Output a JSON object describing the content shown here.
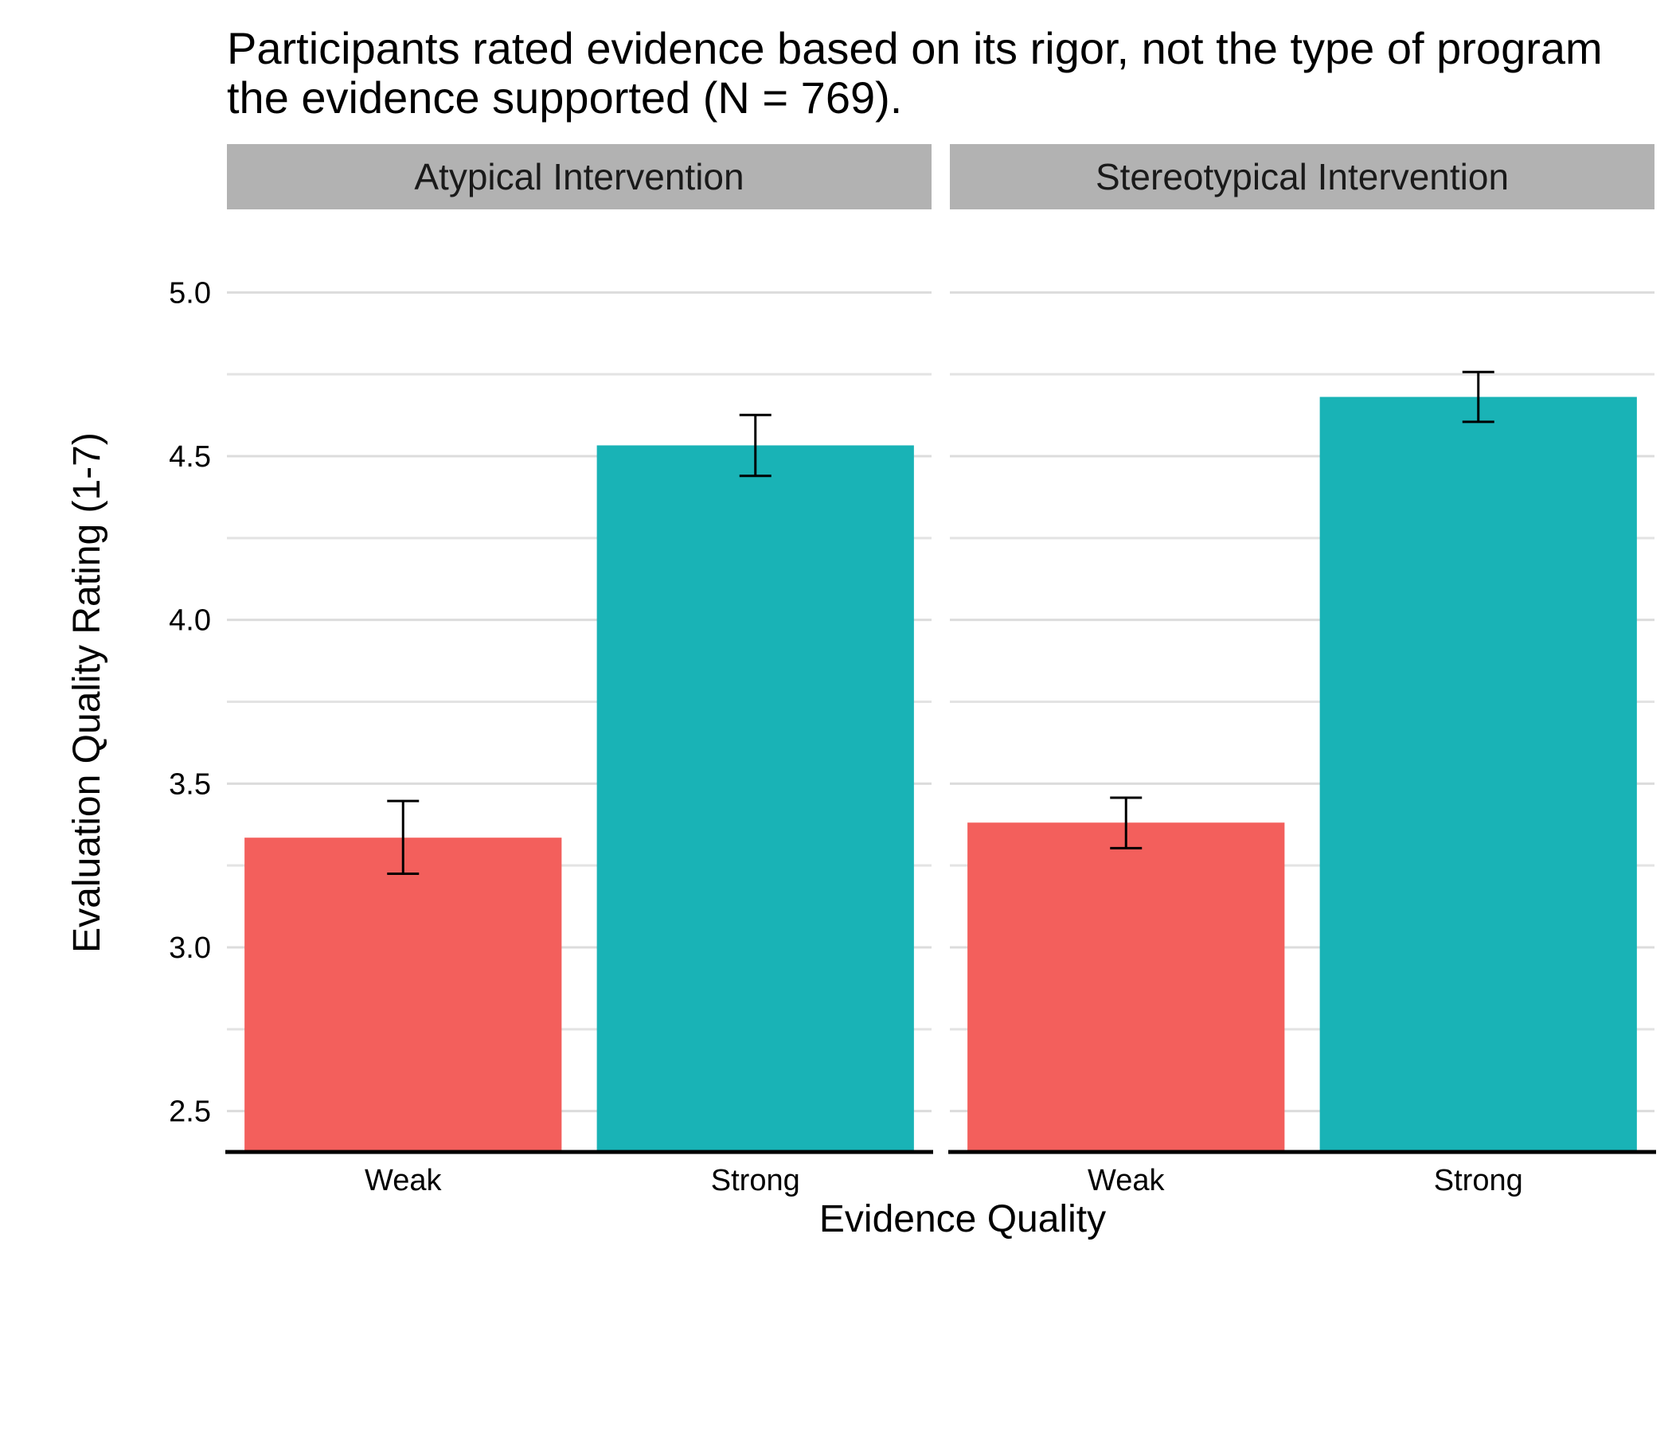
{
  "chart_data": {
    "type": "bar",
    "title": "Participants rated evidence based on its rigor, not the type of program\nthe evidence supported (N = 769).",
    "xlabel": "Evidence Quality",
    "ylabel": "Evaluation Quality Rating (1-7)",
    "ylim": [
      2.38,
      5.12
    ],
    "yticks": [
      "2.5",
      "3.0",
      "3.5",
      "4.0",
      "4.5",
      "5.0"
    ],
    "grid": "horizontal major and minor",
    "legend": "none",
    "categories": [
      "Weak",
      "Strong"
    ],
    "colors": {
      "Weak": "#F35F5C",
      "Strong": "#19B3B6"
    },
    "facets": [
      {
        "name": "Atypical Intervention",
        "bars": [
          {
            "category": "Weak",
            "value": 3.335,
            "error_low": 3.225,
            "error_high": 3.447
          },
          {
            "category": "Strong",
            "value": 4.533,
            "error_low": 4.44,
            "error_high": 4.626
          }
        ]
      },
      {
        "name": "Stereotypical Intervention",
        "bars": [
          {
            "category": "Weak",
            "value": 3.381,
            "error_low": 3.303,
            "error_high": 3.457
          },
          {
            "category": "Strong",
            "value": 4.681,
            "error_low": 4.605,
            "error_high": 4.757
          }
        ]
      }
    ]
  }
}
